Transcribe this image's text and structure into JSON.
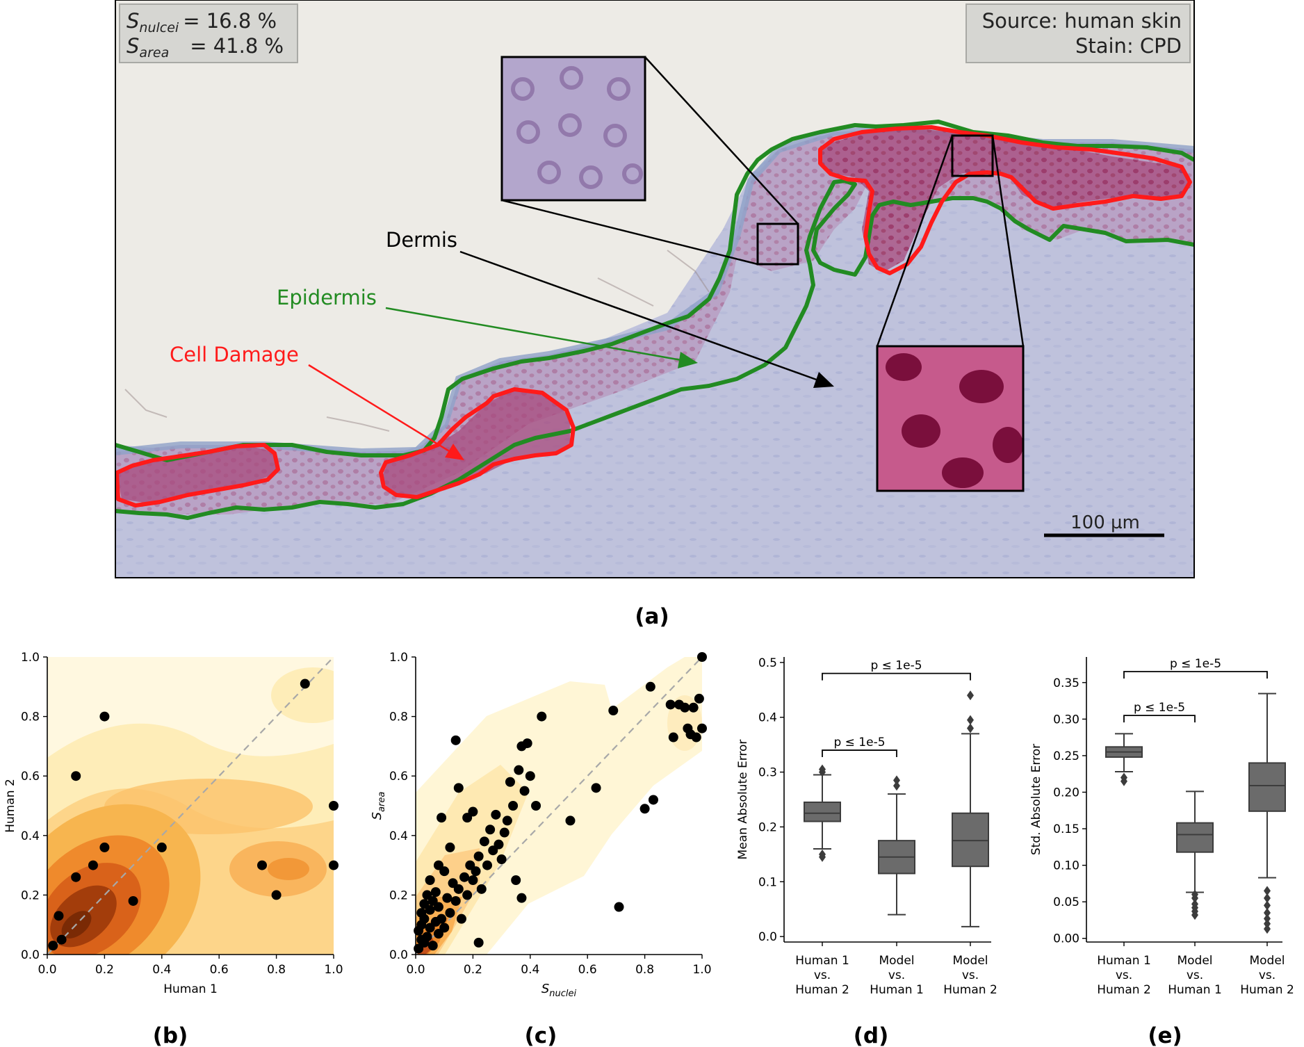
{
  "panel_a": {
    "label": "(a)",
    "stats": {
      "s_nuclei_symbol": "S",
      "s_nuclei_sub": "nulcei",
      "s_nuclei_value": "= 16.8 %",
      "s_area_symbol": "S",
      "s_area_sub": "area",
      "s_area_value": "= 41.8 %"
    },
    "source_text": "Source: human skin",
    "stain_text": "Stain: CPD",
    "labels": {
      "dermis": "Dermis",
      "epidermis": "Epidermis",
      "cell_damage": "Cell Damage"
    },
    "scale_bar": "100 µm",
    "colors": {
      "background": "#edebe6",
      "tissue": "#bfc1dc",
      "epidermis_line": "#228b22",
      "damage_line": "#ff1a1a",
      "damage_fill": "#b04a78"
    }
  },
  "panel_b": {
    "label": "(b)",
    "chart_data": {
      "type": "scatter",
      "xlabel": "Human 1",
      "ylabel": "Human 2",
      "xlim": [
        0,
        1
      ],
      "ylim": [
        0,
        1
      ],
      "xticks": [
        "0.0",
        "0.2",
        "0.4",
        "0.6",
        "0.8",
        "1.0"
      ],
      "yticks": [
        "0.0",
        "0.2",
        "0.4",
        "0.6",
        "0.8",
        "1.0"
      ],
      "points": [
        [
          0.02,
          0.03
        ],
        [
          0.05,
          0.05
        ],
        [
          0.04,
          0.13
        ],
        [
          0.1,
          0.6
        ],
        [
          0.1,
          0.26
        ],
        [
          0.16,
          0.3
        ],
        [
          0.2,
          0.8
        ],
        [
          0.2,
          0.36
        ],
        [
          0.3,
          0.18
        ],
        [
          0.4,
          0.36
        ],
        [
          0.75,
          0.3
        ],
        [
          0.8,
          0.2
        ],
        [
          0.9,
          0.91
        ],
        [
          1.0,
          0.5
        ],
        [
          1.0,
          0.3
        ]
      ],
      "diagonal": true
    }
  },
  "panel_c": {
    "label": "(c)",
    "chart_data": {
      "type": "scatter",
      "xlabel_symbol": "S",
      "xlabel_sub": "nuclei",
      "ylabel_symbol": "S",
      "ylabel_sub": "area",
      "xlim": [
        0,
        1
      ],
      "ylim": [
        0,
        1
      ],
      "xticks": [
        "0.0",
        "0.2",
        "0.4",
        "0.6",
        "0.8",
        "1.0"
      ],
      "yticks": [
        "0.0",
        "0.2",
        "0.4",
        "0.6",
        "0.8",
        "1.0"
      ],
      "points": [
        [
          0.01,
          0.02
        ],
        [
          0.02,
          0.05
        ],
        [
          0.03,
          0.04
        ],
        [
          0.01,
          0.08
        ],
        [
          0.02,
          0.1
        ],
        [
          0.03,
          0.12
        ],
        [
          0.04,
          0.06
        ],
        [
          0.05,
          0.09
        ],
        [
          0.06,
          0.03
        ],
        [
          0.07,
          0.11
        ],
        [
          0.08,
          0.07
        ],
        [
          0.02,
          0.14
        ],
        [
          0.03,
          0.17
        ],
        [
          0.04,
          0.2
        ],
        [
          0.05,
          0.15
        ],
        [
          0.06,
          0.18
        ],
        [
          0.07,
          0.21
        ],
        [
          0.08,
          0.16
        ],
        [
          0.09,
          0.12
        ],
        [
          0.1,
          0.09
        ],
        [
          0.11,
          0.19
        ],
        [
          0.12,
          0.14
        ],
        [
          0.13,
          0.24
        ],
        [
          0.14,
          0.18
        ],
        [
          0.15,
          0.22
        ],
        [
          0.16,
          0.12
        ],
        [
          0.17,
          0.26
        ],
        [
          0.18,
          0.2
        ],
        [
          0.19,
          0.3
        ],
        [
          0.2,
          0.25
        ],
        [
          0.21,
          0.28
        ],
        [
          0.22,
          0.33
        ],
        [
          0.23,
          0.22
        ],
        [
          0.24,
          0.38
        ],
        [
          0.25,
          0.3
        ],
        [
          0.26,
          0.42
        ],
        [
          0.27,
          0.35
        ],
        [
          0.28,
          0.47
        ],
        [
          0.29,
          0.37
        ],
        [
          0.3,
          0.32
        ],
        [
          0.31,
          0.41
        ],
        [
          0.32,
          0.45
        ],
        [
          0.33,
          0.58
        ],
        [
          0.34,
          0.5
        ],
        [
          0.35,
          0.25
        ],
        [
          0.36,
          0.62
        ],
        [
          0.37,
          0.19
        ],
        [
          0.37,
          0.7
        ],
        [
          0.38,
          0.55
        ],
        [
          0.39,
          0.71
        ],
        [
          0.4,
          0.6
        ],
        [
          0.42,
          0.5
        ],
        [
          0.44,
          0.8
        ],
        [
          0.05,
          0.25
        ],
        [
          0.08,
          0.3
        ],
        [
          0.09,
          0.46
        ],
        [
          0.1,
          0.28
        ],
        [
          0.12,
          0.36
        ],
        [
          0.14,
          0.72
        ],
        [
          0.15,
          0.56
        ],
        [
          0.18,
          0.46
        ],
        [
          0.2,
          0.48
        ],
        [
          0.22,
          0.04
        ],
        [
          0.54,
          0.45
        ],
        [
          0.63,
          0.56
        ],
        [
          0.69,
          0.82
        ],
        [
          0.71,
          0.16
        ],
        [
          0.8,
          0.49
        ],
        [
          0.82,
          0.9
        ],
        [
          0.83,
          0.52
        ],
        [
          0.89,
          0.84
        ],
        [
          0.9,
          0.73
        ],
        [
          0.92,
          0.84
        ],
        [
          0.94,
          0.83
        ],
        [
          0.95,
          0.76
        ],
        [
          0.96,
          0.74
        ],
        [
          0.97,
          0.83
        ],
        [
          0.98,
          0.73
        ],
        [
          0.99,
          0.86
        ],
        [
          1.0,
          0.76
        ],
        [
          1.0,
          1.0
        ]
      ],
      "diagonal": true
    }
  },
  "panel_d": {
    "label": "(d)",
    "chart_data": {
      "type": "box",
      "ylabel": "Mean Absolute Error",
      "ylim": [
        -0.01,
        0.51
      ],
      "yticks": [
        "0.0",
        "0.1",
        "0.2",
        "0.3",
        "0.4",
        "0.5"
      ],
      "categories": [
        [
          "Human 1",
          "vs.",
          "Human 2"
        ],
        [
          "Model",
          "vs.",
          "Human 1"
        ],
        [
          "Model",
          "vs.",
          "Human 2"
        ]
      ],
      "boxes": [
        {
          "whisker_low": 0.16,
          "q1": 0.21,
          "median": 0.225,
          "q3": 0.245,
          "whisker_high": 0.295,
          "outliers": [
            0.145,
            0.15,
            0.3,
            0.305
          ]
        },
        {
          "whisker_low": 0.04,
          "q1": 0.115,
          "median": 0.145,
          "q3": 0.175,
          "whisker_high": 0.26,
          "outliers": [
            0.275,
            0.285
          ]
        },
        {
          "whisker_low": 0.018,
          "q1": 0.128,
          "median": 0.175,
          "q3": 0.225,
          "whisker_high": 0.37,
          "outliers": [
            0.38,
            0.395,
            0.44
          ]
        }
      ],
      "brackets": [
        {
          "from": 0,
          "to": 2,
          "y": 0.48,
          "text": "p ≤ 1e-5"
        },
        {
          "from": 0,
          "to": 1,
          "y": 0.34,
          "text": "p ≤ 1e-5"
        }
      ]
    }
  },
  "panel_e": {
    "label": "(e)",
    "chart_data": {
      "type": "box",
      "ylabel": "Std. Absolute Error",
      "ylim": [
        -0.005,
        0.385
      ],
      "yticks": [
        "0.00",
        "0.05",
        "0.10",
        "0.15",
        "0.20",
        "0.25",
        "0.30",
        "0.35"
      ],
      "categories": [
        [
          "Human 1",
          "vs.",
          "Human 2"
        ],
        [
          "Model",
          "vs.",
          "Human 1"
        ],
        [
          "Model",
          "vs.",
          "Human 2"
        ]
      ],
      "boxes": [
        {
          "whisker_low": 0.228,
          "q1": 0.248,
          "median": 0.255,
          "q3": 0.262,
          "whisker_high": 0.28,
          "outliers": [
            0.215,
            0.22
          ]
        },
        {
          "whisker_low": 0.063,
          "q1": 0.118,
          "median": 0.142,
          "q3": 0.158,
          "whisker_high": 0.201,
          "outliers": [
            0.032,
            0.037,
            0.042,
            0.047,
            0.055,
            0.06
          ]
        },
        {
          "whisker_low": 0.083,
          "q1": 0.174,
          "median": 0.209,
          "q3": 0.24,
          "whisker_high": 0.335,
          "outliers": [
            0.013,
            0.02,
            0.027,
            0.035,
            0.045,
            0.055,
            0.065
          ]
        }
      ],
      "brackets": [
        {
          "from": 0,
          "to": 2,
          "y": 0.365,
          "text": "p ≤ 1e-5"
        },
        {
          "from": 0,
          "to": 1,
          "y": 0.305,
          "text": "p ≤ 1e-5"
        }
      ]
    }
  }
}
